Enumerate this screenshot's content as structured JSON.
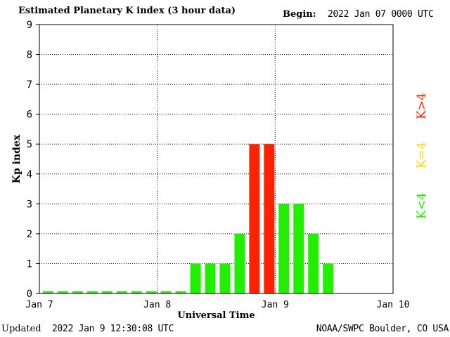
{
  "header": {
    "title": "Estimated Planetary K index (3 hour data)",
    "begin_label": "Begin:",
    "begin_value": "2022 Jan 07 0000 UTC"
  },
  "footer": {
    "updated_label": "Updated",
    "updated_value": "2022 Jan  9 12:30:08 UTC",
    "credit": "NOAA/SWPC Boulder, CO USA"
  },
  "legend": {
    "high": {
      "label": "K>4",
      "color": "#ff2200"
    },
    "equal": {
      "label": "K=4",
      "color": "#ffd700"
    },
    "low": {
      "label": "K<4",
      "color": "#22ee00"
    }
  },
  "chart_data": {
    "type": "bar",
    "xlabel": "Universal Time",
    "ylabel": "Kp index",
    "ylim": [
      0,
      9
    ],
    "yticks": [
      "0",
      "1",
      "2",
      "3",
      "4",
      "5",
      "6",
      "7",
      "8",
      "9"
    ],
    "xticks": [
      "Jan 7",
      "Jan 8",
      "Jan 9",
      "Jan 10"
    ],
    "bin_hours": 3,
    "values": [
      0,
      0,
      0,
      0,
      0,
      0,
      0,
      0,
      0,
      0,
      1,
      1,
      1,
      2,
      5,
      5,
      3,
      3,
      2,
      1
    ],
    "grid": true
  }
}
